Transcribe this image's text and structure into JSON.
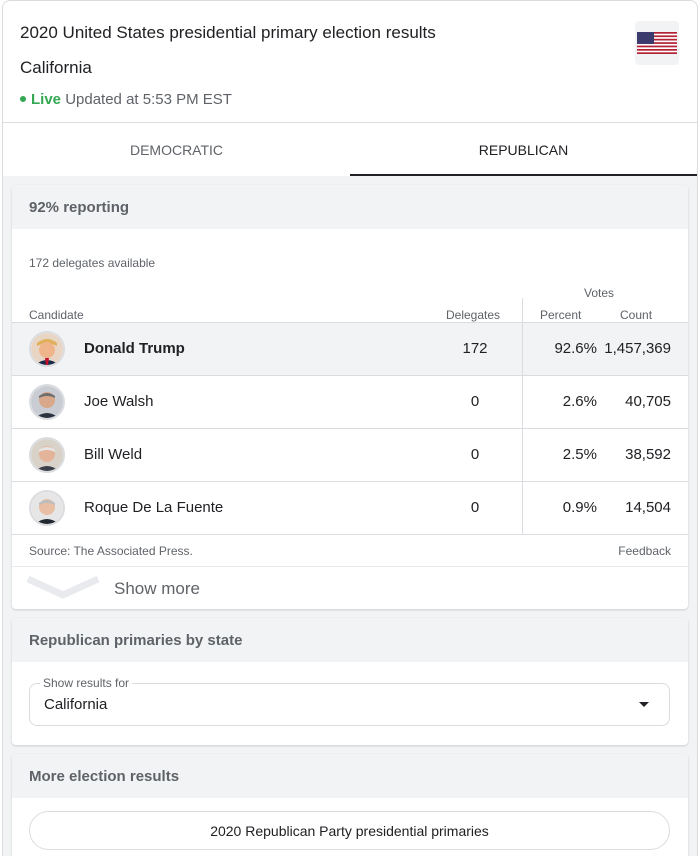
{
  "header": {
    "title": "2020 United States presidential primary election results",
    "subtitle": "California",
    "live_label": "Live",
    "updated_text": "Updated at 5:53 PM EST"
  },
  "tabs": [
    {
      "label": "DEMOCRATIC",
      "selected": false
    },
    {
      "label": "REPUBLICAN",
      "selected": true
    }
  ],
  "results": {
    "reporting": "92% reporting",
    "delegates_available": "172 delegates available",
    "votes_header": "Votes",
    "columns": {
      "candidate": "Candidate",
      "delegates": "Delegates",
      "percent": "Percent",
      "count": "Count"
    },
    "rows": [
      {
        "name": "Donald Trump",
        "delegates": "172",
        "percent": "92.6%",
        "count": "1,457,369",
        "avatar": "candidate-photo"
      },
      {
        "name": "Joe Walsh",
        "delegates": "0",
        "percent": "2.6%",
        "count": "40,705",
        "avatar": "candidate-photo"
      },
      {
        "name": "Bill Weld",
        "delegates": "0",
        "percent": "2.5%",
        "count": "38,592",
        "avatar": "candidate-photo"
      },
      {
        "name": "Roque De La Fuente",
        "delegates": "0",
        "percent": "0.9%",
        "count": "14,504",
        "avatar": "candidate-photo"
      }
    ],
    "source": "Source: The Associated Press.",
    "feedback": "Feedback",
    "show_more": "Show more"
  },
  "by_state": {
    "heading": "Republican primaries by state",
    "select_label": "Show results for",
    "select_value": "California"
  },
  "more_results": {
    "heading": "More election results",
    "link_label": "2020 Republican Party presidential primaries"
  },
  "colors": {
    "live": "#34a853",
    "accent_text": "#202124",
    "muted_text": "#5f6368",
    "divider": "#dadce0",
    "panel_bg": "#f1f3f4"
  }
}
